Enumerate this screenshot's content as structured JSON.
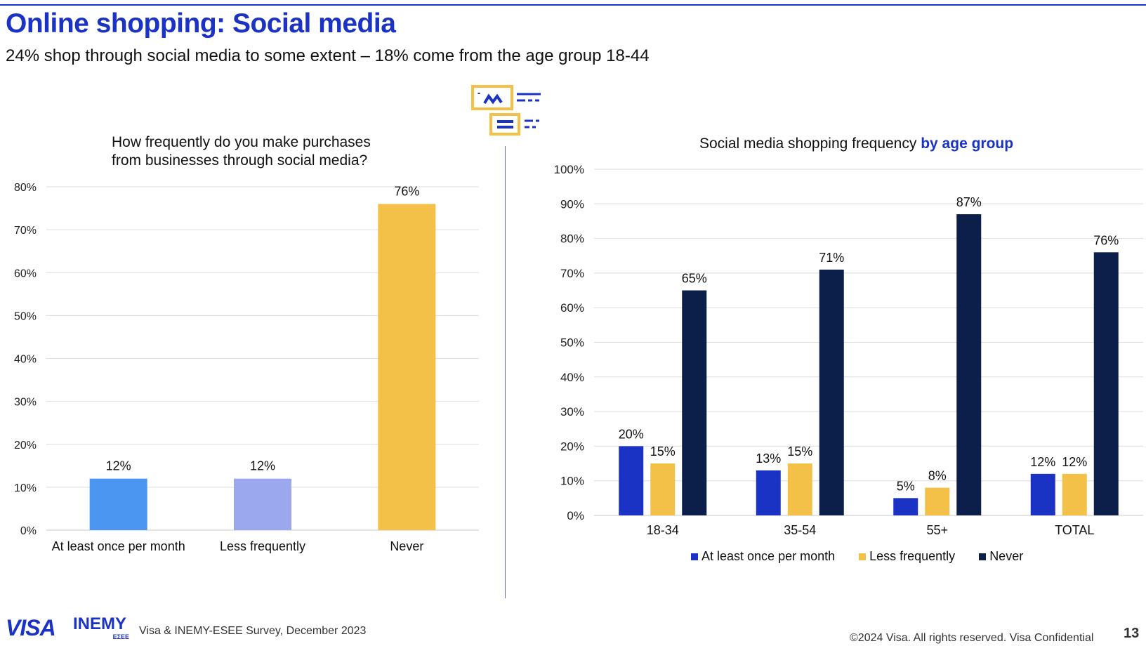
{
  "header": {
    "title": "Online shopping: Social media",
    "subtitle": "24% shop through social media to some extent – 18% come from  the age group 18-44"
  },
  "colors": {
    "brand_blue": "#1a33c4",
    "at_least_once": "#1a33c4",
    "less_frequently": "#f3c147",
    "never": "#0b1f4a",
    "left_bar_1": "#4b96f0",
    "left_bar_2": "#9ba8ee",
    "left_bar_3": "#f3c147",
    "decor_yellow": "#f3c147"
  },
  "chart_data": [
    {
      "type": "bar",
      "title_line1": "How frequently do you make purchases",
      "title_line2": "from businesses through social media?",
      "categories": [
        "At least once per month",
        "Less frequently",
        "Never"
      ],
      "values": [
        12,
        12,
        76
      ],
      "data_labels": [
        "12%",
        "12%",
        "76%"
      ],
      "ylim": [
        0,
        80
      ],
      "yticks": [
        "0%",
        "10%",
        "20%",
        "30%",
        "40%",
        "50%",
        "60%",
        "70%",
        "80%"
      ],
      "grid": true
    },
    {
      "type": "bar",
      "title": "Social media shopping frequency",
      "title_accent": "by age group",
      "categories": [
        "18-34",
        "35-54",
        "55+",
        "TOTAL"
      ],
      "series": [
        {
          "name": "At least once per month",
          "values": [
            20,
            13,
            5,
            12
          ],
          "labels": [
            "20%",
            "13%",
            "5%",
            "12%"
          ]
        },
        {
          "name": "Less frequently",
          "values": [
            15,
            15,
            8,
            12
          ],
          "labels": [
            "15%",
            "15%",
            "8%",
            "12%"
          ]
        },
        {
          "name": "Never",
          "values": [
            65,
            71,
            87,
            76
          ],
          "labels": [
            "65%",
            "71%",
            "87%",
            "76%"
          ]
        }
      ],
      "ylim": [
        0,
        100
      ],
      "yticks": [
        "0%",
        "10%",
        "20%",
        "30%",
        "40%",
        "50%",
        "60%",
        "70%",
        "80%",
        "90%",
        "100%"
      ],
      "grid": true,
      "legend_position": "bottom"
    }
  ],
  "footer": {
    "logo_visa": "VISA",
    "logo_inemy": "INEMY",
    "logo_inemy_sub": "EΣEE",
    "source": "Visa & INEMY-ESEE Survey, December 2023",
    "copyright": "©2024 Visa. All rights reserved. Visa Confidential",
    "page_number": "13"
  }
}
